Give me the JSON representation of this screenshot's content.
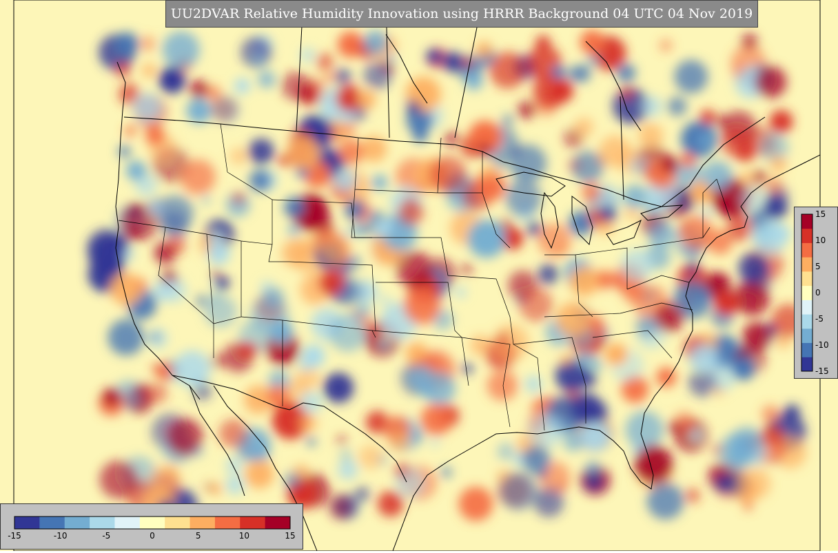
{
  "title": "UU2DVAR Relative Humidity Innovation using HRRR Background 04 UTC 04 Nov 2019",
  "colorbar": {
    "min": -15,
    "max": 15,
    "tick_labels": [
      "-15",
      "-10",
      "-5",
      "0",
      "5",
      "10",
      "15"
    ],
    "colors": [
      "#313695",
      "#4575b4",
      "#74add1",
      "#abd9e9",
      "#e0f3f8",
      "#ffffbf",
      "#fee090",
      "#fdae61",
      "#f46d43",
      "#d73027",
      "#a50026"
    ]
  },
  "map": {
    "background_color": "#fdf6b8",
    "region": "CONUS"
  }
}
